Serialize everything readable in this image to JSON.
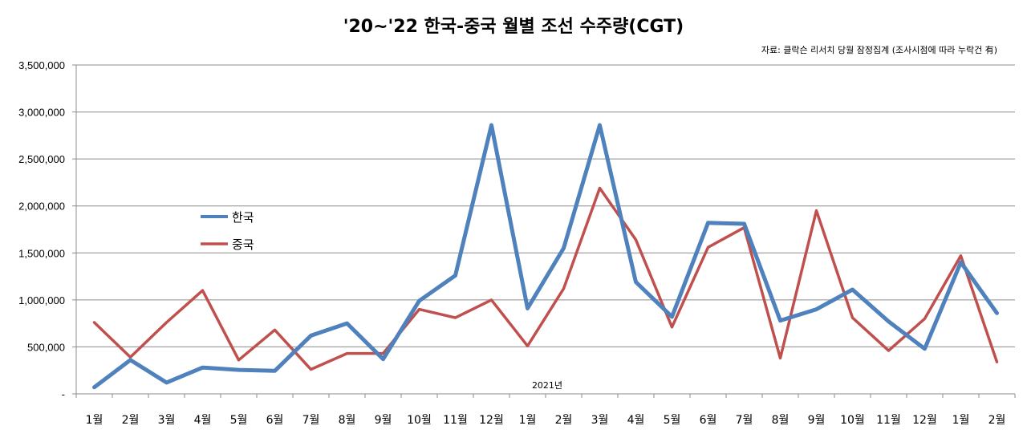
{
  "chart_data": {
    "type": "line",
    "title": "'20~'22 한국-중국 월별 조선 수주량(CGT)",
    "source_note": "자료: 클락슨 리서치 당월 잠정집계 (조사시점에 따라 누락건 有)",
    "annotation": "2021년",
    "xlabel": "",
    "ylabel": "",
    "ylim": [
      0,
      3500000
    ],
    "y_ticks": [
      "-",
      "500,000",
      "1,000,000",
      "1,500,000",
      "2,000,000",
      "2,500,000",
      "3,000,000",
      "3,500,000"
    ],
    "categories": [
      "1월",
      "2월",
      "3월",
      "4월",
      "5월",
      "6월",
      "7월",
      "8월",
      "9월",
      "10월",
      "11월",
      "12월",
      "1월",
      "2월",
      "3월",
      "4월",
      "5월",
      "6월",
      "7월",
      "8월",
      "9월",
      "10월",
      "11월",
      "12월",
      "1월",
      "2월"
    ],
    "grid": true,
    "legend_position": "left-middle",
    "series": [
      {
        "name": "한국",
        "color": "#4f81bd",
        "values": [
          70000,
          360000,
          120000,
          280000,
          255000,
          245000,
          620000,
          750000,
          370000,
          990000,
          1260000,
          2860000,
          910000,
          1550000,
          2860000,
          1190000,
          820000,
          1820000,
          1810000,
          780000,
          900000,
          1110000,
          770000,
          480000,
          1400000,
          860000
        ]
      },
      {
        "name": "중국",
        "color": "#c0504d",
        "values": [
          760000,
          390000,
          760000,
          1100000,
          360000,
          680000,
          260000,
          430000,
          430000,
          900000,
          810000,
          1000000,
          510000,
          1120000,
          2190000,
          1640000,
          710000,
          1560000,
          1770000,
          380000,
          1950000,
          810000,
          460000,
          800000,
          1470000,
          340000
        ]
      }
    ]
  }
}
